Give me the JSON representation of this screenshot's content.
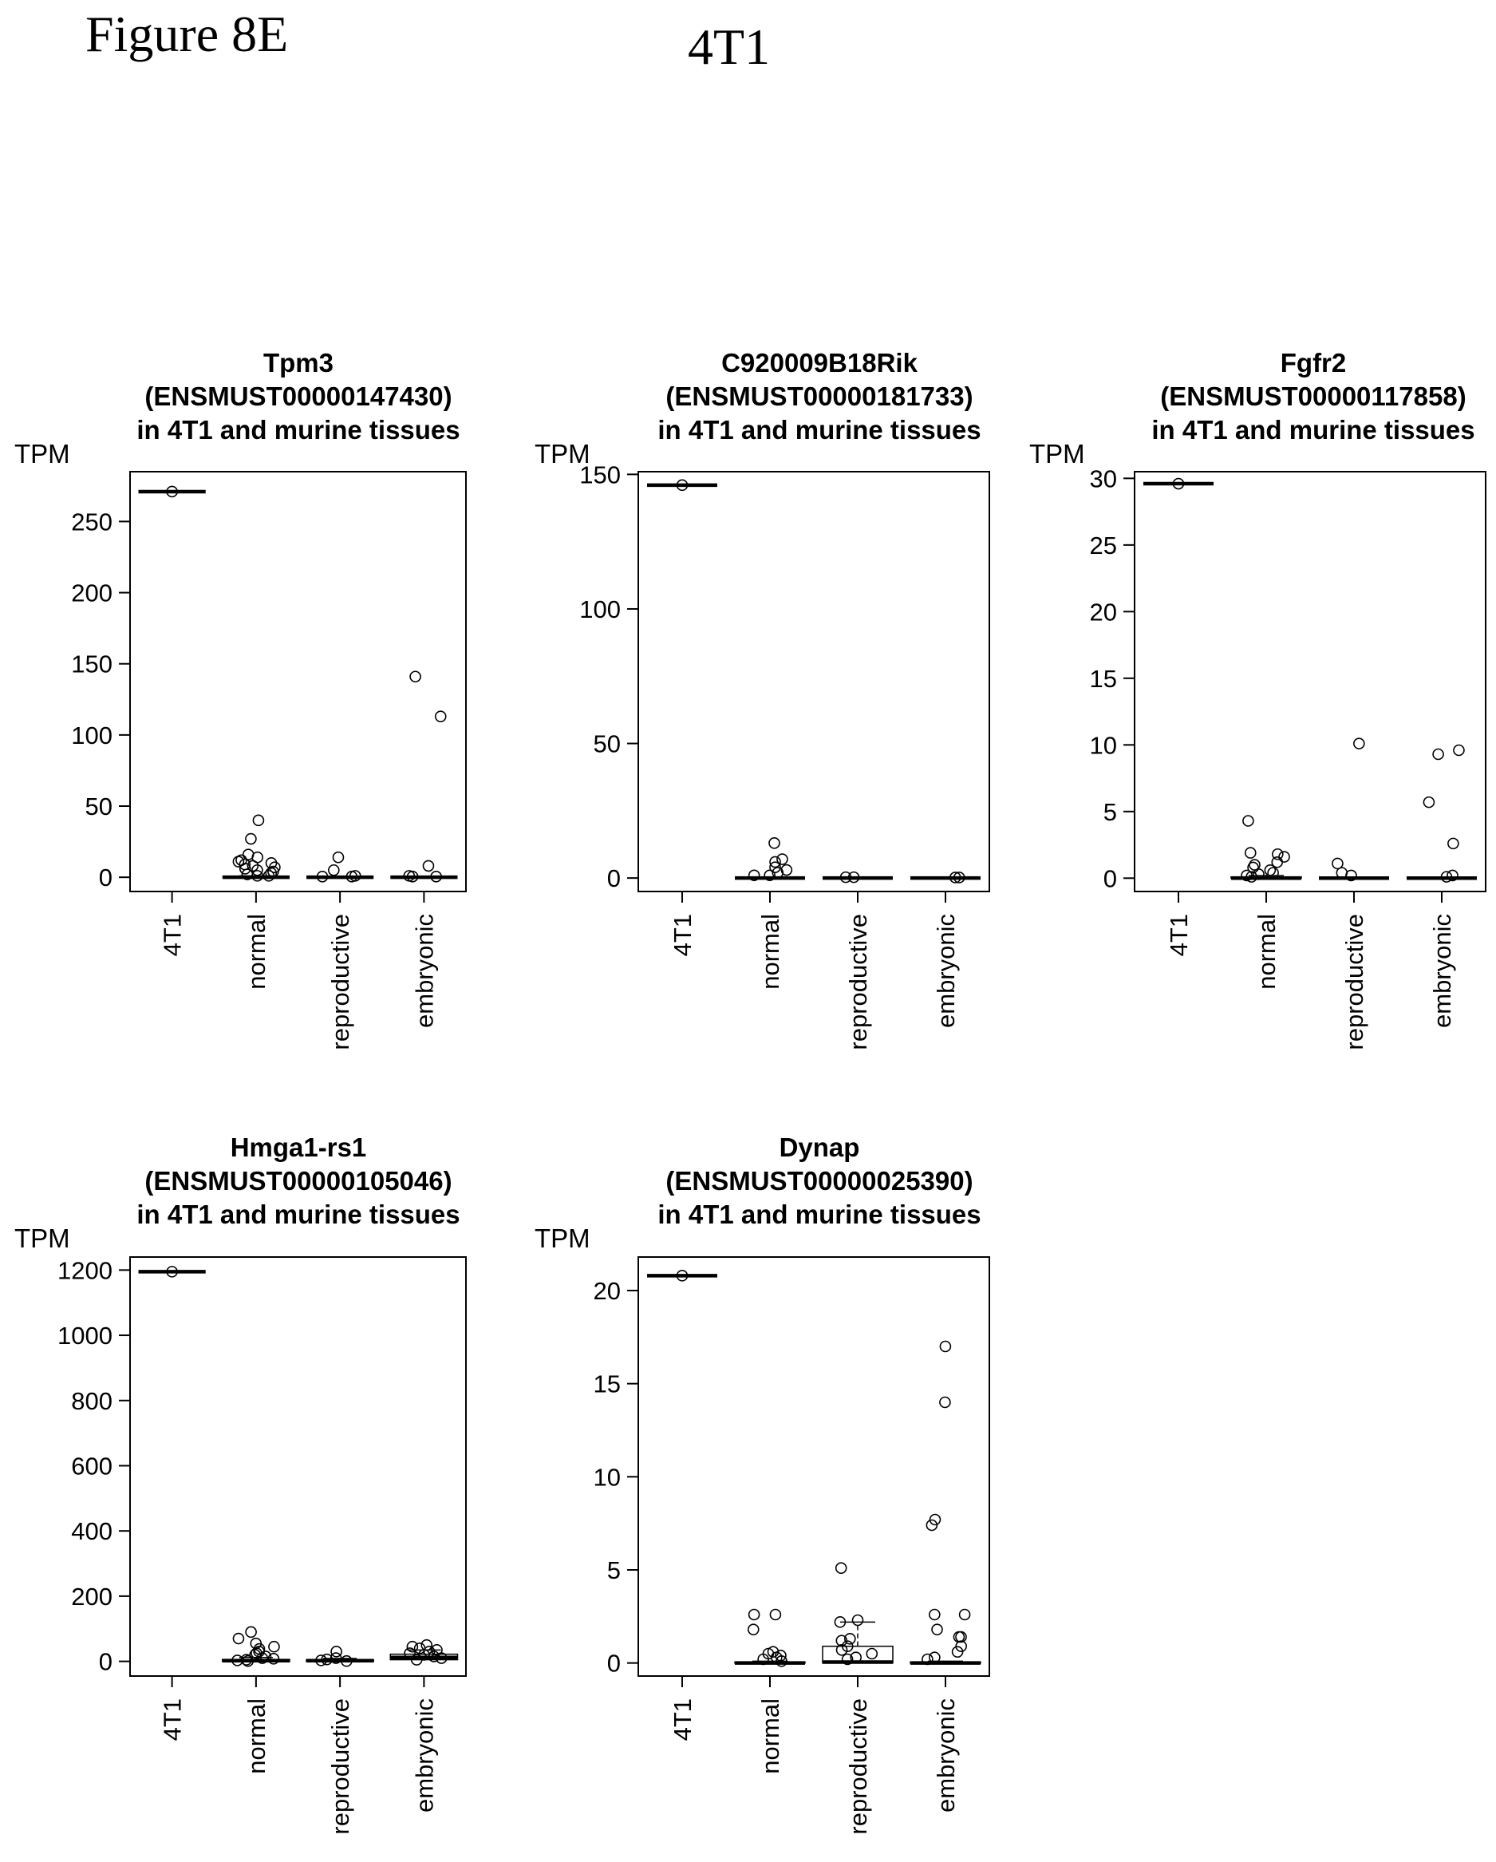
{
  "figure": {
    "label": "Figure 8E",
    "cell_line": "4T1"
  },
  "chart_data": [
    {
      "type": "box",
      "title": [
        "Tpm3",
        "(ENSMUST00000147430)",
        "in 4T1 and murine tissues"
      ],
      "ylabel": "TPM",
      "categories": [
        "4T1",
        "normal",
        "reproductive",
        "embryonic"
      ],
      "ylim": [
        -10,
        285
      ],
      "yticks": [
        0,
        50,
        100,
        150,
        200,
        250
      ],
      "boxes": [
        {
          "category": "4T1",
          "q1": 271,
          "median": 271,
          "q3": 271,
          "whisker_low": 271,
          "whisker_high": 271
        },
        {
          "category": "normal",
          "q1": 0,
          "median": 0,
          "q3": 0.5,
          "whisker_low": 0,
          "whisker_high": 1
        },
        {
          "category": "reproductive",
          "q1": 0,
          "median": 0,
          "q3": 0,
          "whisker_low": 0,
          "whisker_high": 0
        },
        {
          "category": "embryonic",
          "q1": 0,
          "median": 0,
          "q3": 0,
          "whisker_low": 0,
          "whisker_high": 0
        }
      ],
      "points": [
        {
          "category": "4T1",
          "values": [
            271
          ]
        },
        {
          "category": "normal",
          "values": [
            40,
            27,
            16,
            14,
            12,
            11,
            10,
            9,
            8,
            7,
            6,
            5,
            4,
            3,
            2,
            1,
            1
          ]
        },
        {
          "category": "reproductive",
          "values": [
            14,
            5,
            1,
            0.5,
            0.5
          ]
        },
        {
          "category": "embryonic",
          "values": [
            141,
            113,
            8,
            1,
            0.5,
            0.5
          ]
        }
      ]
    },
    {
      "type": "box",
      "title": [
        "C920009B18Rik",
        "(ENSMUST00000181733)",
        "in 4T1 and murine tissues"
      ],
      "ylabel": "TPM",
      "categories": [
        "4T1",
        "normal",
        "reproductive",
        "embryonic"
      ],
      "ylim": [
        -5,
        151
      ],
      "yticks": [
        0,
        50,
        100,
        150
      ],
      "boxes": [
        {
          "category": "4T1",
          "q1": 146,
          "median": 146,
          "q3": 146,
          "whisker_low": 146,
          "whisker_high": 146
        },
        {
          "category": "normal",
          "q1": 0,
          "median": 0,
          "q3": 0,
          "whisker_low": 0,
          "whisker_high": 0
        },
        {
          "category": "reproductive",
          "q1": 0,
          "median": 0,
          "q3": 0,
          "whisker_low": 0,
          "whisker_high": 0
        },
        {
          "category": "embryonic",
          "q1": 0,
          "median": 0,
          "q3": 0,
          "whisker_low": 0,
          "whisker_high": 0
        }
      ],
      "points": [
        {
          "category": "4T1",
          "values": [
            146
          ]
        },
        {
          "category": "normal",
          "values": [
            13,
            7,
            6,
            4,
            3,
            2,
            1,
            1
          ]
        },
        {
          "category": "reproductive",
          "values": [
            0.3,
            0.3
          ]
        },
        {
          "category": "embryonic",
          "values": [
            0.2,
            0.2
          ]
        }
      ]
    },
    {
      "type": "box",
      "title": [
        "Fgfr2",
        "(ENSMUST00000117858)",
        "in 4T1 and murine tissues"
      ],
      "ylabel": "TPM",
      "categories": [
        "4T1",
        "normal",
        "reproductive",
        "embryonic"
      ],
      "ylim": [
        -1,
        30.5
      ],
      "yticks": [
        0,
        5,
        10,
        15,
        20,
        25,
        30
      ],
      "boxes": [
        {
          "category": "4T1",
          "q1": 29.6,
          "median": 29.6,
          "q3": 29.6,
          "whisker_low": 29.6,
          "whisker_high": 29.6
        },
        {
          "category": "normal",
          "q1": 0,
          "median": 0,
          "q3": 0.1,
          "whisker_low": 0,
          "whisker_high": 0.2
        },
        {
          "category": "reproductive",
          "q1": 0,
          "median": 0,
          "q3": 0,
          "whisker_low": 0,
          "whisker_high": 0
        },
        {
          "category": "embryonic",
          "q1": 0,
          "median": 0,
          "q3": 0,
          "whisker_low": 0,
          "whisker_high": 0
        }
      ],
      "points": [
        {
          "category": "4T1",
          "values": [
            29.6
          ]
        },
        {
          "category": "normal",
          "values": [
            4.3,
            1.9,
            1.8,
            1.6,
            1.2,
            1.0,
            0.8,
            0.6,
            0.4,
            0.3,
            0.2,
            0.1
          ]
        },
        {
          "category": "reproductive",
          "values": [
            10.1,
            1.1,
            0.4,
            0.2
          ]
        },
        {
          "category": "embryonic",
          "values": [
            9.6,
            9.3,
            5.7,
            2.6,
            0.2,
            0.1
          ]
        }
      ]
    },
    {
      "type": "box",
      "title": [
        "Hmga1-rs1",
        "(ENSMUST00000105046)",
        "in 4T1 and murine tissues"
      ],
      "ylabel": "TPM",
      "categories": [
        "4T1",
        "normal",
        "reproductive",
        "embryonic"
      ],
      "ylim": [
        -45,
        1240
      ],
      "yticks": [
        0,
        200,
        400,
        600,
        800,
        1000,
        1200
      ],
      "boxes": [
        {
          "category": "4T1",
          "q1": 1195,
          "median": 1195,
          "q3": 1195,
          "whisker_low": 1195,
          "whisker_high": 1195
        },
        {
          "category": "normal",
          "q1": 0,
          "median": 2,
          "q3": 6,
          "whisker_low": 0,
          "whisker_high": 12
        },
        {
          "category": "reproductive",
          "q1": 0,
          "median": 2,
          "q3": 5,
          "whisker_low": 0,
          "whisker_high": 9
        },
        {
          "category": "embryonic",
          "q1": 5,
          "median": 12,
          "q3": 22,
          "whisker_low": 0,
          "whisker_high": 35
        }
      ],
      "points": [
        {
          "category": "4T1",
          "values": [
            1195
          ]
        },
        {
          "category": "normal",
          "values": [
            90,
            70,
            55,
            45,
            38,
            30,
            25,
            20,
            15,
            10,
            8,
            5,
            3,
            1
          ]
        },
        {
          "category": "reproductive",
          "values": [
            30,
            10,
            6,
            3,
            1
          ]
        },
        {
          "category": "embryonic",
          "values": [
            50,
            45,
            40,
            35,
            30,
            25,
            20,
            15,
            10,
            5
          ]
        }
      ]
    },
    {
      "type": "box",
      "title": [
        "Dynap",
        "(ENSMUST00000025390)",
        "in 4T1 and murine tissues"
      ],
      "ylabel": "TPM",
      "categories": [
        "4T1",
        "normal",
        "reproductive",
        "embryonic"
      ],
      "ylim": [
        -0.7,
        21.8
      ],
      "yticks": [
        0,
        5,
        10,
        15,
        20
      ],
      "boxes": [
        {
          "category": "4T1",
          "q1": 20.8,
          "median": 20.8,
          "q3": 20.8,
          "whisker_low": 20.8,
          "whisker_high": 20.8
        },
        {
          "category": "normal",
          "q1": 0,
          "median": 0,
          "q3": 0.05,
          "whisker_low": 0,
          "whisker_high": 0.1
        },
        {
          "category": "reproductive",
          "q1": 0,
          "median": 0.05,
          "q3": 0.9,
          "whisker_low": 0,
          "whisker_high": 2.2
        },
        {
          "category": "embryonic",
          "q1": 0,
          "median": 0,
          "q3": 0.05,
          "whisker_low": 0,
          "whisker_high": 0.1
        }
      ],
      "points": [
        {
          "category": "4T1",
          "values": [
            20.8
          ]
        },
        {
          "category": "normal",
          "values": [
            2.6,
            2.6,
            1.8,
            0.6,
            0.5,
            0.4,
            0.3,
            0.2,
            0.1
          ]
        },
        {
          "category": "reproductive",
          "values": [
            5.1,
            2.3,
            2.2,
            1.3,
            1.2,
            0.9,
            0.7,
            0.5,
            0.3,
            0.2
          ]
        },
        {
          "category": "embryonic",
          "values": [
            17,
            14,
            7.7,
            7.4,
            2.6,
            2.6,
            1.8,
            1.4,
            1.4,
            0.9,
            0.6,
            0.3,
            0.2
          ]
        }
      ]
    }
  ]
}
